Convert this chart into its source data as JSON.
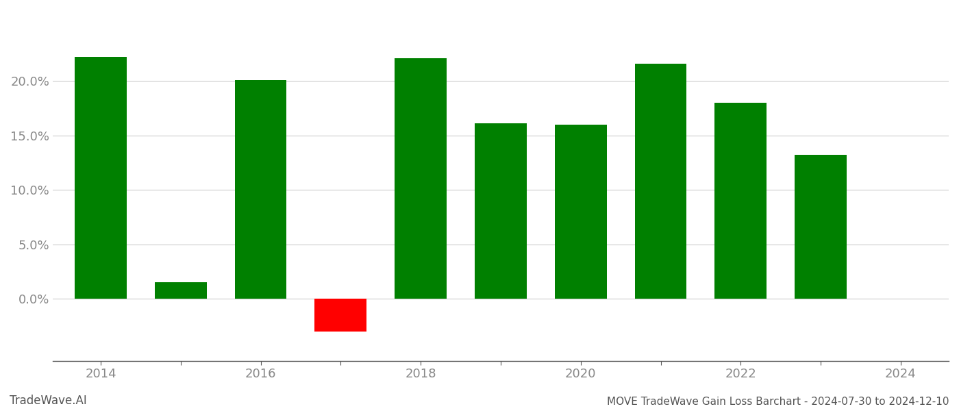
{
  "years": [
    2014,
    2015,
    2016,
    2017,
    2018,
    2019,
    2020,
    2021,
    2022,
    2023
  ],
  "values": [
    0.222,
    0.015,
    0.201,
    -0.03,
    0.221,
    0.161,
    0.16,
    0.216,
    0.18,
    0.132
  ],
  "bar_colors": [
    "#008000",
    "#008000",
    "#008000",
    "#ff0000",
    "#008000",
    "#008000",
    "#008000",
    "#008000",
    "#008000",
    "#008000"
  ],
  "footer_left": "TradeWave.AI",
  "footer_right": "MOVE TradeWave Gain Loss Barchart - 2024-07-30 to 2024-12-10",
  "xtick_positions": [
    2014,
    2015,
    2016,
    2017,
    2018,
    2019,
    2020,
    2021,
    2022,
    2023,
    2024
  ],
  "xtick_labeled": [
    2014,
    2016,
    2018,
    2020,
    2022,
    2024
  ],
  "ylim_min": -0.057,
  "ylim_max": 0.265,
  "ytick_vals": [
    0.0,
    0.05,
    0.1,
    0.15,
    0.2
  ],
  "background_color": "#ffffff",
  "grid_color": "#cccccc",
  "bar_width": 0.65,
  "footer_left_color": "#555555",
  "footer_right_color": "#555555",
  "tick_label_color": "#888888",
  "axis_line_color": "#555555",
  "xlim_min": 2013.4,
  "xlim_max": 2024.6
}
